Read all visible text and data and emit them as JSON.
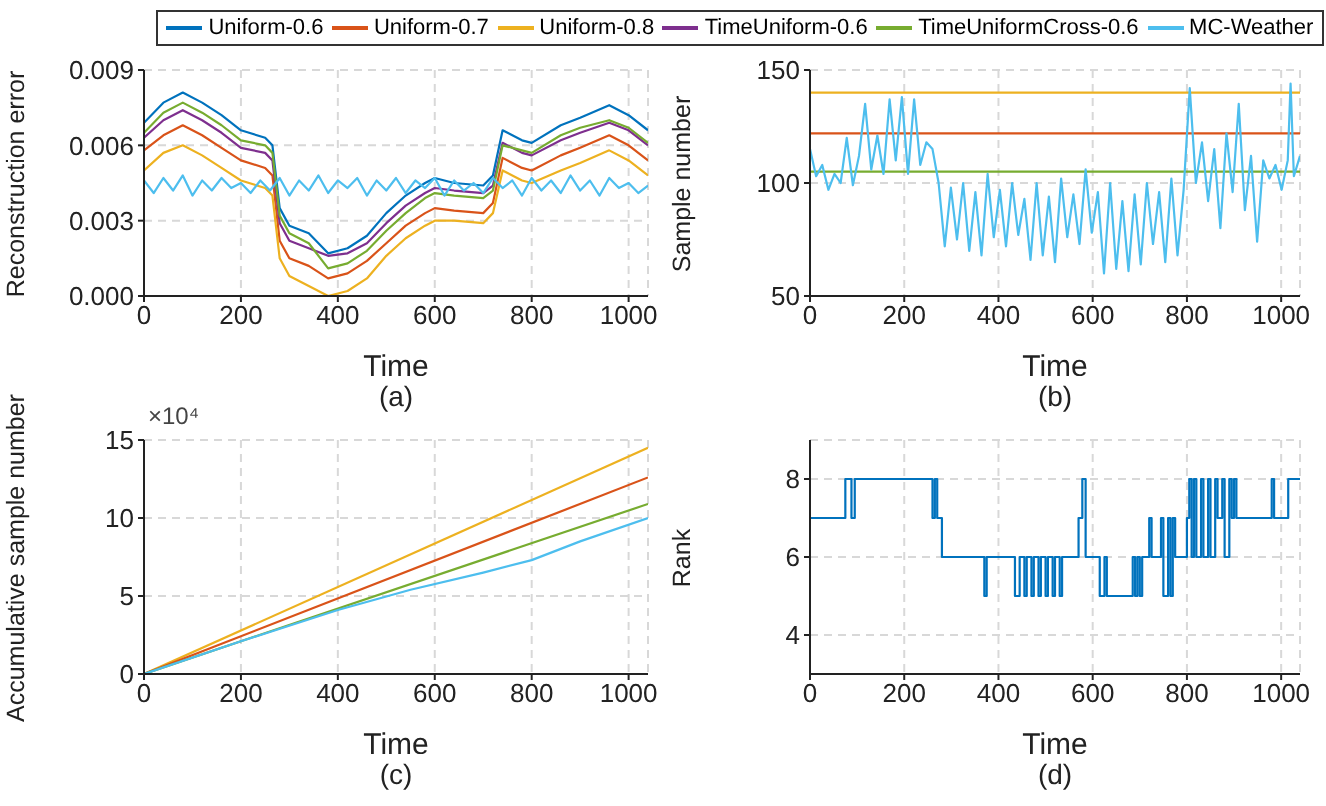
{
  "chart_data": [
    {
      "type": "line",
      "xlabel": "Time",
      "ylabel": "Reconstruction error",
      "annotations": [
        "(a)"
      ],
      "legend": "top",
      "grid": true,
      "xlim": [
        0,
        1040
      ],
      "xticks": [
        0,
        200,
        400,
        600,
        800,
        1000
      ],
      "ylim": [
        0,
        0.009
      ],
      "yticks": [
        {
          "value": 0,
          "label": "0.000"
        },
        {
          "value": 0.003,
          "label": "0.003"
        },
        {
          "value": 0.006,
          "label": "0.006"
        },
        {
          "value": 0.009,
          "label": "0.009"
        }
      ],
      "x": [
        0,
        40,
        80,
        120,
        160,
        200,
        250,
        265,
        280,
        300,
        340,
        380,
        420,
        460,
        500,
        540,
        580,
        600,
        640,
        700,
        720,
        740,
        780,
        800,
        860,
        900,
        960,
        1000,
        1040
      ],
      "series": [
        {
          "name": "Uniform-0.6",
          "color": "#0072bd",
          "values": [
            0.0069,
            0.0077,
            0.0081,
            0.0077,
            0.0072,
            0.0066,
            0.0063,
            0.006,
            0.0035,
            0.0028,
            0.0025,
            0.0017,
            0.0019,
            0.0024,
            0.0033,
            0.004,
            0.0045,
            0.0047,
            0.0045,
            0.0044,
            0.0048,
            0.0066,
            0.0062,
            0.0061,
            0.0068,
            0.0071,
            0.0076,
            0.0072,
            0.0066
          ]
        },
        {
          "name": "Uniform-0.7",
          "color": "#d95319",
          "values": [
            0.0058,
            0.0064,
            0.0068,
            0.0064,
            0.0059,
            0.0054,
            0.0051,
            0.0048,
            0.0022,
            0.0015,
            0.0012,
            0.0007,
            0.0009,
            0.0014,
            0.0021,
            0.0028,
            0.0033,
            0.0035,
            0.0034,
            0.0033,
            0.0037,
            0.0055,
            0.0051,
            0.005,
            0.0056,
            0.0059,
            0.0064,
            0.006,
            0.0054
          ]
        },
        {
          "name": "Uniform-0.8",
          "color": "#edb120",
          "values": [
            0.005,
            0.0057,
            0.006,
            0.0056,
            0.0051,
            0.0046,
            0.0043,
            0.004,
            0.0015,
            0.0008,
            0.0004,
            0.0,
            0.0002,
            0.0007,
            0.0016,
            0.0023,
            0.0028,
            0.003,
            0.003,
            0.0029,
            0.0033,
            0.005,
            0.0046,
            0.0045,
            0.005,
            0.0053,
            0.0058,
            0.0054,
            0.0048
          ]
        },
        {
          "name": "TimeUniform-0.6",
          "color": "#7e2f8e",
          "values": [
            0.0063,
            0.007,
            0.0074,
            0.007,
            0.0065,
            0.0059,
            0.0057,
            0.0054,
            0.0029,
            0.0022,
            0.0019,
            0.0016,
            0.0017,
            0.0021,
            0.0029,
            0.0036,
            0.0041,
            0.0043,
            0.0042,
            0.0041,
            0.0044,
            0.0061,
            0.0057,
            0.0056,
            0.0062,
            0.0065,
            0.0069,
            0.0066,
            0.006
          ]
        },
        {
          "name": "TimeUniformCross-0.6",
          "color": "#77ac30",
          "values": [
            0.0065,
            0.0073,
            0.0077,
            0.0073,
            0.0068,
            0.0062,
            0.006,
            0.0057,
            0.0032,
            0.0025,
            0.0021,
            0.0011,
            0.0013,
            0.0018,
            0.0026,
            0.0033,
            0.0039,
            0.0041,
            0.004,
            0.0039,
            0.0042,
            0.006,
            0.0058,
            0.0057,
            0.0064,
            0.0067,
            0.007,
            0.0067,
            0.0061
          ]
        },
        {
          "name": "MC-Weather",
          "color": "#4dbeee",
          "x": [
            0,
            20,
            40,
            60,
            80,
            100,
            120,
            140,
            160,
            180,
            200,
            220,
            240,
            260,
            280,
            300,
            320,
            340,
            360,
            380,
            400,
            420,
            440,
            460,
            480,
            500,
            520,
            540,
            560,
            580,
            600,
            620,
            640,
            660,
            680,
            700,
            720,
            740,
            760,
            780,
            800,
            820,
            840,
            860,
            880,
            900,
            920,
            940,
            960,
            980,
            1000,
            1020,
            1040
          ],
          "values": [
            0.0046,
            0.0041,
            0.0047,
            0.0042,
            0.0048,
            0.004,
            0.0046,
            0.0042,
            0.0047,
            0.0043,
            0.0045,
            0.0041,
            0.0046,
            0.0042,
            0.0047,
            0.004,
            0.0046,
            0.0042,
            0.0048,
            0.0041,
            0.0046,
            0.0043,
            0.0047,
            0.004,
            0.0046,
            0.0042,
            0.0047,
            0.0041,
            0.0046,
            0.0043,
            0.0047,
            0.004,
            0.0046,
            0.0042,
            0.0045,
            0.0041,
            0.0047,
            0.0043,
            0.0046,
            0.004,
            0.0047,
            0.0042,
            0.0046,
            0.0041,
            0.0048,
            0.0042,
            0.0046,
            0.004,
            0.0047,
            0.0043,
            0.0045,
            0.0041,
            0.0044
          ]
        }
      ]
    },
    {
      "type": "line",
      "xlabel": "Time",
      "ylabel": "Sample number",
      "annotations": [
        "(b)"
      ],
      "grid": true,
      "xlim": [
        0,
        1040
      ],
      "xticks": [
        0,
        200,
        400,
        600,
        800,
        1000
      ],
      "ylim": [
        50,
        150
      ],
      "yticks": [
        50,
        100,
        150
      ],
      "series": [
        {
          "color": "#edb120",
          "x": [
            0,
            1040
          ],
          "values": [
            140,
            140
          ]
        },
        {
          "color": "#d95319",
          "x": [
            0,
            1040
          ],
          "values": [
            122,
            122
          ]
        },
        {
          "color": "#77ac30",
          "x": [
            0,
            1040
          ],
          "values": [
            105,
            105
          ]
        },
        {
          "color": "#4dbeee",
          "x": [
            0,
            13,
            26,
            39,
            52,
            65,
            78,
            91,
            104,
            117,
            130,
            143,
            156,
            169,
            182,
            195,
            208,
            221,
            234,
            247,
            260,
            273,
            286,
            299,
            312,
            325,
            338,
            351,
            364,
            377,
            390,
            403,
            416,
            429,
            442,
            455,
            468,
            481,
            494,
            507,
            520,
            533,
            546,
            559,
            572,
            585,
            598,
            611,
            624,
            637,
            650,
            663,
            676,
            689,
            702,
            715,
            728,
            741,
            754,
            767,
            780,
            793,
            806,
            819,
            832,
            845,
            858,
            871,
            884,
            897,
            910,
            923,
            936,
            949,
            962,
            975,
            988,
            1001,
            1014,
            1020,
            1027,
            1040
          ],
          "values": [
            115,
            103,
            108,
            97,
            104,
            100,
            120,
            99,
            112,
            135,
            106,
            121,
            104,
            137,
            110,
            138,
            104,
            137,
            108,
            118,
            115,
            100,
            72,
            98,
            75,
            100,
            70,
            96,
            68,
            104,
            76,
            97,
            72,
            100,
            77,
            93,
            66,
            100,
            68,
            94,
            65,
            102,
            76,
            95,
            73,
            106,
            78,
            96,
            60,
            100,
            62,
            92,
            61,
            95,
            64,
            100,
            73,
            96,
            65,
            102,
            68,
            97,
            142,
            100,
            118,
            92,
            115,
            80,
            122,
            96,
            135,
            88,
            112,
            74,
            110,
            102,
            108,
            97,
            110,
            144,
            103,
            112
          ]
        }
      ]
    },
    {
      "type": "line",
      "xlabel": "Time",
      "ylabel": "Accumulative sample number",
      "annotations": [
        "×10⁴",
        "(c)"
      ],
      "grid": true,
      "xlim": [
        0,
        1040
      ],
      "xticks": [
        0,
        200,
        400,
        600,
        800,
        1000
      ],
      "ylim": [
        0,
        15
      ],
      "yticks": [
        0,
        5,
        10,
        15
      ],
      "series": [
        {
          "color": "#edb120",
          "x": [
            0,
            1040
          ],
          "values": [
            0,
            14.5
          ]
        },
        {
          "color": "#d95319",
          "x": [
            0,
            1040
          ],
          "values": [
            0,
            12.6
          ]
        },
        {
          "color": "#77ac30",
          "x": [
            0,
            1040
          ],
          "values": [
            0,
            10.9
          ]
        },
        {
          "color": "#4dbeee",
          "x": [
            0,
            200,
            400,
            550,
            700,
            800,
            900,
            1040
          ],
          "values": [
            0,
            2.1,
            4.1,
            5.4,
            6.5,
            7.3,
            8.5,
            10.0
          ]
        }
      ]
    },
    {
      "type": "step",
      "xlabel": "Time",
      "ylabel": "Rank",
      "annotations": [
        "(d)"
      ],
      "grid": true,
      "xlim": [
        0,
        1040
      ],
      "xticks": [
        0,
        200,
        400,
        600,
        800,
        1000
      ],
      "ylim": [
        3,
        9
      ],
      "yticks": [
        4,
        6,
        8
      ],
      "series": [
        {
          "color": "#0072bd",
          "x": [
            0,
            75,
            88,
            95,
            100,
            255,
            260,
            265,
            270,
            280,
            365,
            370,
            375,
            430,
            435,
            445,
            455,
            460,
            470,
            475,
            485,
            490,
            500,
            505,
            515,
            520,
            530,
            535,
            545,
            570,
            578,
            585,
            610,
            615,
            625,
            630,
            680,
            685,
            690,
            695,
            700,
            705,
            720,
            725,
            745,
            750,
            760,
            765,
            770,
            775,
            790,
            800,
            805,
            810,
            815,
            820,
            830,
            835,
            845,
            850,
            860,
            865,
            875,
            880,
            890,
            895,
            900,
            905,
            975,
            980,
            985,
            1010,
            1015,
            1040
          ],
          "values": [
            7,
            8,
            7,
            8,
            8,
            8,
            7,
            8,
            7,
            6,
            6,
            5,
            6,
            6,
            5,
            6,
            5,
            6,
            5,
            6,
            5,
            6,
            5,
            6,
            5,
            6,
            5,
            6,
            6,
            7,
            8,
            6,
            6,
            5,
            6,
            5,
            5,
            6,
            5,
            6,
            5,
            6,
            7,
            6,
            7,
            5,
            7,
            5,
            7,
            6,
            6,
            7,
            8,
            6,
            8,
            6,
            8,
            6,
            8,
            6,
            8,
            7,
            8,
            6,
            8,
            7,
            8,
            7,
            7,
            8,
            7,
            7,
            8,
            8
          ]
        }
      ]
    }
  ]
}
